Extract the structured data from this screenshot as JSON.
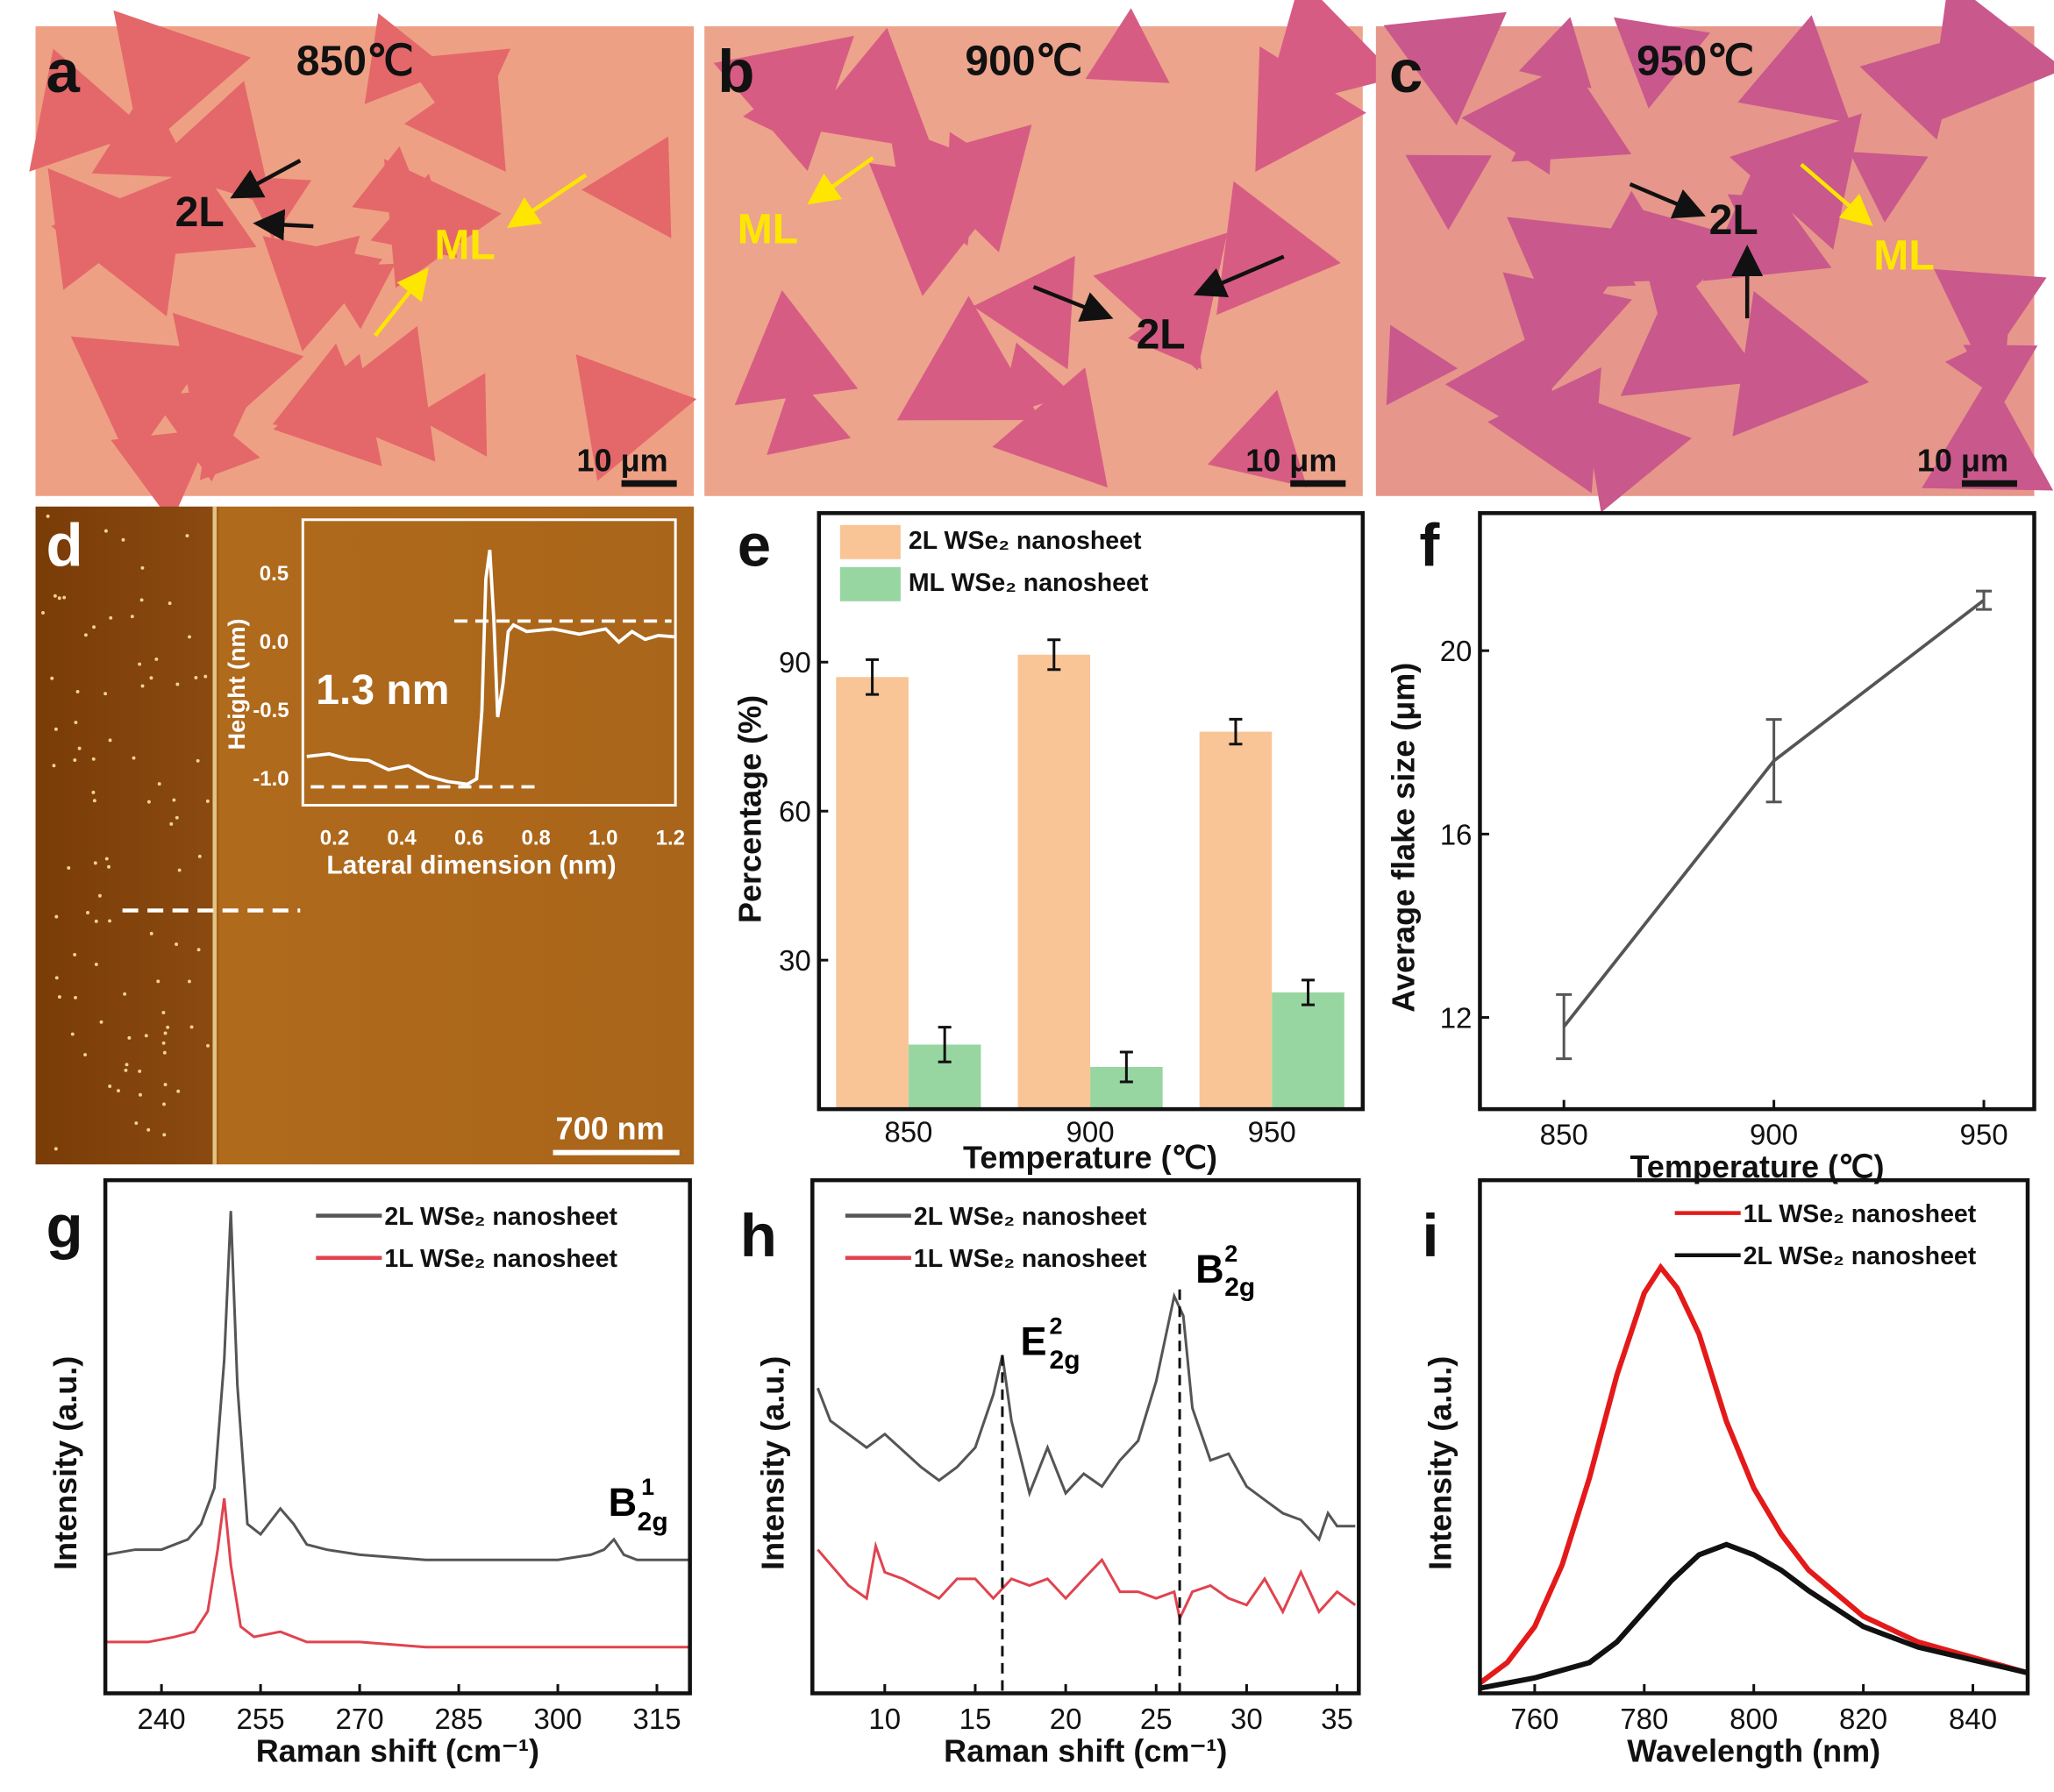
{
  "panels": {
    "a": {
      "label": "a",
      "temperature": "850℃",
      "scale_bar": "10 μm",
      "annotations": [
        "2L",
        "ML"
      ]
    },
    "b": {
      "label": "b",
      "temperature": "900℃",
      "scale_bar": "10 μm",
      "annotations": [
        "ML",
        "2L"
      ]
    },
    "c": {
      "label": "c",
      "temperature": "950℃",
      "scale_bar": "10 μm",
      "annotations": [
        "2L",
        "ML"
      ]
    },
    "d": {
      "label": "d",
      "scale_bar": "700 nm",
      "step_height": "1.3 nm",
      "inset": {
        "ylabel": "Height (nm)",
        "xlabel": "Lateral dimension (nm)",
        "yticks": [
          "0.5",
          "0.0",
          "-0.5",
          "-1.0"
        ],
        "xticks": [
          "0.2",
          "0.4",
          "0.6",
          "0.8",
          "1.0",
          "1.2"
        ]
      }
    },
    "e": {
      "label": "e"
    },
    "f": {
      "label": "f"
    },
    "g": {
      "label": "g"
    },
    "h": {
      "label": "h"
    },
    "i": {
      "label": "i"
    }
  },
  "colors": {
    "bar_2L": "#f9c597",
    "bar_ML": "#98d6a1",
    "line_2L": "#555555",
    "line_1L": "#e0434f",
    "pl_1L": "#e41a1a",
    "pl_2L": "#111111"
  },
  "chart_data": [
    {
      "panel": "e",
      "type": "bar",
      "categories": [
        "850",
        "900",
        "950"
      ],
      "series": [
        {
          "name": "2L WSe₂ nanosheet",
          "values": [
            87,
            91.5,
            76
          ],
          "errors": [
            3.5,
            3,
            2.5
          ]
        },
        {
          "name": "ML WSe₂ nanosheet",
          "values": [
            13,
            8.5,
            23.5
          ],
          "errors": [
            3.5,
            3,
            2.5
          ]
        }
      ],
      "xlabel": "Temperature (℃)",
      "ylabel": "Percentage (%)",
      "ylim": [
        0,
        120
      ],
      "yticks": [
        "30",
        "60",
        "90"
      ],
      "legend": "top-left"
    },
    {
      "panel": "f",
      "type": "line",
      "x": [
        850,
        900,
        950
      ],
      "y": [
        11.8,
        17.6,
        21.1
      ],
      "errors": [
        0.7,
        0.9,
        0.2
      ],
      "xlabel": "Temperature (℃)",
      "ylabel": "Average flake size (μm)",
      "xlim": [
        830,
        962
      ],
      "ylim": [
        10,
        23
      ],
      "xticks": [
        "850",
        "900",
        "950"
      ],
      "yticks": [
        "12",
        "16",
        "20"
      ]
    },
    {
      "panel": "g",
      "type": "line",
      "xlabel": "Raman shift (cm⁻¹)",
      "ylabel": "Intensity (a.u.)",
      "xlim": [
        231.5,
        320
      ],
      "ylim": [
        0,
        1
      ],
      "xticks": [
        "240",
        "255",
        "270",
        "285",
        "300",
        "315"
      ],
      "peak_label": {
        "base": "B",
        "sup": "1",
        "sub": "2g"
      },
      "legend": "top-right",
      "series": [
        {
          "name": "2L WSe₂ nanosheet",
          "x": [
            231.5,
            236,
            240,
            244,
            246,
            248,
            249.5,
            250.5,
            251.5,
            253,
            255,
            258,
            260,
            262,
            265,
            270,
            280,
            290,
            300,
            305,
            307,
            308.5,
            310,
            312,
            320
          ],
          "y": [
            0.27,
            0.28,
            0.28,
            0.3,
            0.33,
            0.4,
            0.65,
            0.94,
            0.6,
            0.33,
            0.31,
            0.36,
            0.33,
            0.29,
            0.28,
            0.27,
            0.26,
            0.26,
            0.26,
            0.27,
            0.28,
            0.3,
            0.27,
            0.26,
            0.26
          ]
        },
        {
          "name": "1L WSe₂ nanosheet",
          "x": [
            231.5,
            238,
            242,
            245,
            247,
            248.5,
            249.5,
            250.5,
            252,
            254,
            258,
            262,
            270,
            280,
            300,
            320
          ],
          "y": [
            0.1,
            0.1,
            0.11,
            0.12,
            0.16,
            0.28,
            0.38,
            0.25,
            0.13,
            0.11,
            0.12,
            0.1,
            0.1,
            0.09,
            0.09,
            0.09
          ]
        }
      ]
    },
    {
      "panel": "h",
      "type": "line",
      "xlabel": "Raman shift (cm⁻¹)",
      "ylabel": "Intensity (a.u.)",
      "xlim": [
        6,
        36.2
      ],
      "ylim": [
        0,
        1
      ],
      "xticks": [
        "10",
        "15",
        "20",
        "25",
        "30",
        "35"
      ],
      "peak_labels": [
        {
          "base": "E",
          "sup": "2",
          "sub": "2g",
          "x": 16.5
        },
        {
          "base": "B",
          "sup": "2",
          "sub": "2g",
          "x": 26.3
        }
      ],
      "legend": "top-left",
      "series": [
        {
          "name": "2L WSe₂ nanosheet",
          "x": [
            6.3,
            7,
            9,
            10,
            12,
            13,
            14,
            15,
            16,
            16.5,
            17,
            18,
            19,
            20,
            21,
            22,
            23,
            24,
            25,
            26,
            26.5,
            27,
            28,
            29,
            30,
            31,
            32,
            33,
            34,
            34.5,
            35,
            36
          ],
          "y": [
            0.595,
            0.531,
            0.479,
            0.505,
            0.441,
            0.415,
            0.441,
            0.479,
            0.582,
            0.659,
            0.531,
            0.39,
            0.479,
            0.39,
            0.428,
            0.403,
            0.454,
            0.492,
            0.608,
            0.774,
            0.736,
            0.556,
            0.454,
            0.467,
            0.403,
            0.377,
            0.351,
            0.338,
            0.3,
            0.351,
            0.326,
            0.326
          ]
        },
        {
          "name": "1L WSe₂ nanosheet",
          "x": [
            6.3,
            8,
            9,
            9.5,
            10,
            11,
            13,
            14,
            15,
            16,
            17,
            18,
            19,
            20,
            21,
            22,
            23,
            24,
            25,
            26,
            26.3,
            27,
            28,
            29,
            30,
            31,
            32,
            33,
            34,
            35,
            36
          ],
          "y": [
            0.28,
            0.21,
            0.185,
            0.287,
            0.236,
            0.223,
            0.185,
            0.223,
            0.223,
            0.185,
            0.223,
            0.21,
            0.223,
            0.185,
            0.223,
            0.26,
            0.198,
            0.198,
            0.185,
            0.198,
            0.146,
            0.198,
            0.21,
            0.185,
            0.172,
            0.223,
            0.159,
            0.236,
            0.159,
            0.198,
            0.172
          ]
        }
      ]
    },
    {
      "panel": "i",
      "type": "line",
      "xlabel": "Wavelength (nm)",
      "ylabel": "Intensity (a.u.)",
      "xlim": [
        750,
        850
      ],
      "ylim": [
        0,
        1
      ],
      "xticks": [
        "760",
        "780",
        "800",
        "820",
        "840"
      ],
      "legend": "top-right",
      "series": [
        {
          "name": "1L WSe₂ nanosheet",
          "x": [
            750,
            755,
            760,
            765,
            770,
            775,
            780,
            783,
            786,
            790,
            795,
            800,
            805,
            810,
            820,
            830,
            840,
            850
          ],
          "y": [
            0.02,
            0.06,
            0.13,
            0.25,
            0.42,
            0.62,
            0.78,
            0.83,
            0.79,
            0.7,
            0.53,
            0.4,
            0.31,
            0.24,
            0.15,
            0.1,
            0.07,
            0.04
          ]
        },
        {
          "name": "2L WSe₂ nanosheet",
          "x": [
            750,
            760,
            770,
            775,
            780,
            785,
            790,
            795,
            800,
            805,
            810,
            820,
            830,
            840,
            850
          ],
          "y": [
            0.01,
            0.03,
            0.06,
            0.1,
            0.16,
            0.22,
            0.27,
            0.29,
            0.27,
            0.24,
            0.2,
            0.13,
            0.09,
            0.065,
            0.04
          ]
        }
      ]
    }
  ]
}
